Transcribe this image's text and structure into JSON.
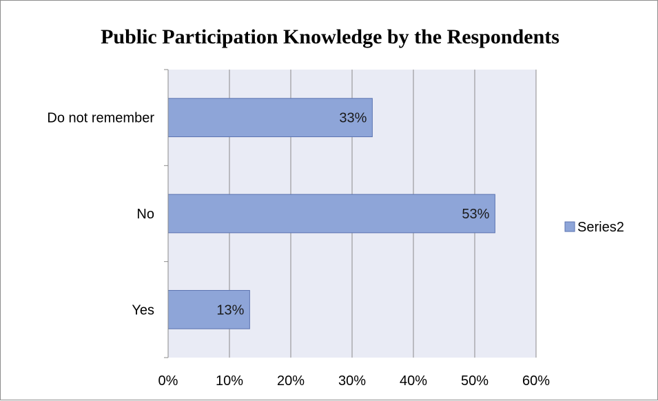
{
  "chart_data": {
    "type": "bar",
    "orientation": "horizontal",
    "title": "Public Participation Knowledge by the Respondents",
    "categories": [
      "Yes",
      "No",
      "Do not remember"
    ],
    "series": [
      {
        "name": "Series2",
        "values": [
          13.3,
          53.3,
          33.3
        ],
        "data_labels": [
          "13%",
          "53%",
          "33%"
        ],
        "color": "#8ea5d8"
      }
    ],
    "x_ticks": [
      "0%",
      "10%",
      "20%",
      "30%",
      "40%",
      "50%",
      "60%"
    ],
    "xlim": [
      0,
      60
    ],
    "grid": true,
    "legend_position": "right",
    "plot_background": "#e9ebf5",
    "bar_border_color": "#5a72b0"
  }
}
